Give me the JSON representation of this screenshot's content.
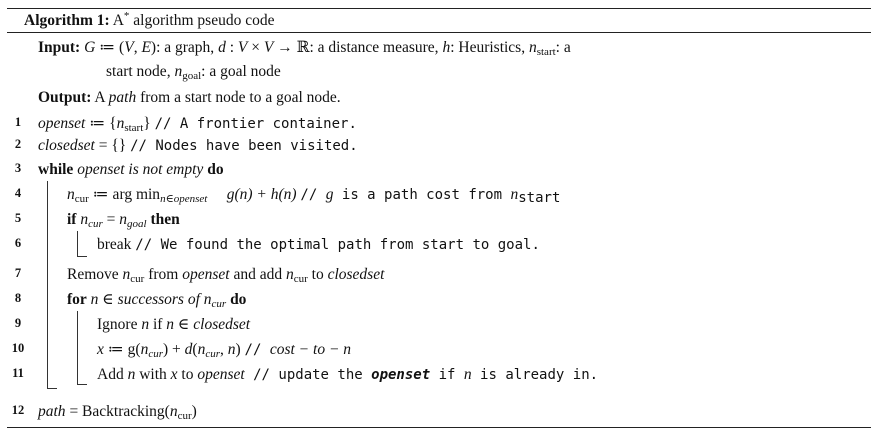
{
  "caption": {
    "label": "Algorithm 1:",
    "title_pre": "A",
    "title_sup": "*",
    "title_post": " algorithm pseudo code"
  },
  "input": {
    "label": "Input:",
    "line1": {
      "G": "G",
      "def1": " ≔ (",
      "V": "V",
      "comma": ", ",
      "E": "E",
      "close": "): a graph, ",
      "d": "d",
      "colon": " : ",
      "V2": "V",
      "times": " × ",
      "V3": "V",
      "arrow": " → ℝ: a distance measure, ",
      "h": "h",
      "heur": ": Heuristics, ",
      "n": "n",
      "start_sub": "start",
      "start_txt": ": a"
    },
    "line2": {
      "pre": "start node, ",
      "n": "n",
      "goal_sub": "goal",
      "post": ": a goal node"
    }
  },
  "output": {
    "label": "Output:",
    "pre": " A ",
    "path": "path",
    "post": " from a start node to a goal node."
  },
  "lines": [
    {
      "num": "1"
    },
    {
      "num": "2"
    },
    {
      "num": "3"
    },
    {
      "num": "4"
    },
    {
      "num": "5"
    },
    {
      "num": "6"
    },
    {
      "num": "7"
    },
    {
      "num": "8"
    },
    {
      "num": "9"
    },
    {
      "num": "10"
    },
    {
      "num": "11"
    },
    {
      "num": "12"
    }
  ],
  "l1": {
    "openset": "openset",
    "eq": " ≔ {",
    "n": "n",
    "sub": "start",
    "close": "} ",
    "comment": "// A frontier container."
  },
  "l2": {
    "closedset": "closedset",
    "eq": " = {} ",
    "comment": "// Nodes have been visited."
  },
  "l3": {
    "while": "while",
    "cond": " openset is not empty ",
    "do": "do"
  },
  "l4": {
    "n": "n",
    "cur": "cur",
    "argmin": " ≔ arg min",
    "sub": "n∈openset",
    "expr": "g(n) + h(n) ",
    "comment": "// ",
    "g": "g",
    "comment2": " is a path cost from ",
    "n2": "n",
    "start": "start"
  },
  "l5": {
    "if": "if",
    "n": " n",
    "cur": "cur",
    "eq": " = ",
    "n2": "n",
    "goal": "goal",
    "then": " then"
  },
  "l6": {
    "break": "break ",
    "comment": "// We found the optimal path from start to goal."
  },
  "l7": {
    "pre": "Remove ",
    "n": "n",
    "cur": "cur",
    "mid": " from ",
    "openset": "openset",
    "mid2": " and add ",
    "n2": "n",
    "cur2": "cur",
    "mid3": " to ",
    "closedset": "closedset"
  },
  "l8": {
    "for": "for",
    "n": " n",
    "in": " ∈ ",
    "succ": "successors of ",
    "n2": "n",
    "cur": "cur",
    "do": " do"
  },
  "l9": {
    "pre": "Ignore ",
    "n": "n",
    "mid": " if ",
    "n2": "n",
    "in": " ∈ ",
    "closedset": "closedset"
  },
  "l10": {
    "x": "x",
    "eq": " ≔ g(",
    "n": "n",
    "cur": "cur",
    "plus": ") + ",
    "d": "d",
    "open": "(",
    "n2": "n",
    "cur2": "cur",
    "comma": ", ",
    "n3": "n",
    "close": ") ",
    "comment": "// ",
    "cost": "cost − to − n"
  },
  "l11": {
    "pre": "Add ",
    "n": "n",
    "mid": " with ",
    "x": "x",
    "mid2": " to ",
    "openset": "openset",
    "comment": " // update the ",
    "openset2": "openset",
    "comment2": " if ",
    "n2": "n",
    "comment3": " is already in."
  },
  "l12": {
    "path": "path",
    "eq": " = Backtracking(",
    "n": "n",
    "cur": "cur",
    "close": ")"
  }
}
